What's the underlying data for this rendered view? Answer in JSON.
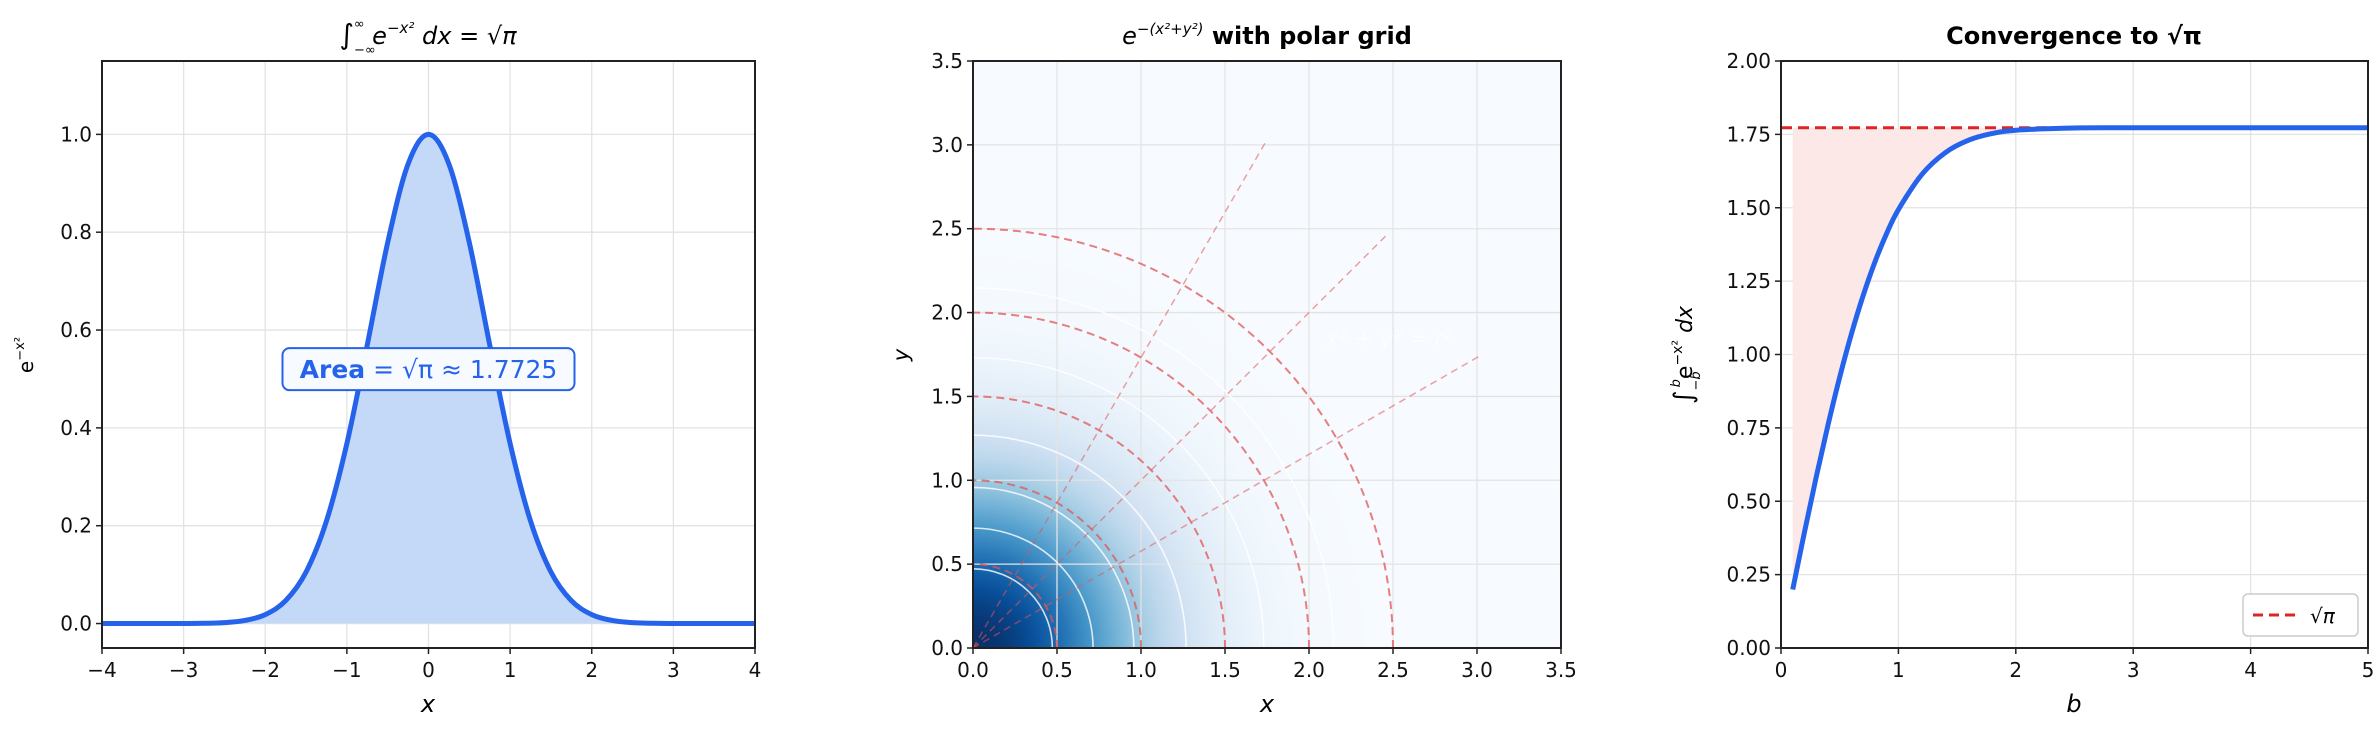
{
  "chart_data": [
    {
      "type": "area",
      "title_parts": [
        "∫",
        "−∞",
        "∞",
        " e",
        "−x²",
        " dx = √π"
      ],
      "xlabel": "x",
      "ylabel_parts": [
        "e",
        "−x²"
      ],
      "xlim": [
        -4,
        4
      ],
      "ylim": [
        -0.05,
        1.15
      ],
      "grid": true,
      "xticks": [
        -4,
        -3,
        -2,
        -1,
        0,
        1,
        2,
        3,
        4
      ],
      "xtick_labels": [
        "−4",
        "−3",
        "−2",
        "−1",
        "0",
        "1",
        "2",
        "3",
        "4"
      ],
      "yticks": [
        0,
        0.2,
        0.4,
        0.6,
        0.8,
        1.0
      ],
      "ytick_labels": [
        "0.0",
        "0.2",
        "0.4",
        "0.6",
        "0.8",
        "1.0"
      ],
      "series": [
        {
          "x": [
            -4,
            -3.75,
            -3.5,
            -3.25,
            -3,
            -2.75,
            -2.5,
            -2.25,
            -2,
            -1.75,
            -1.5,
            -1.25,
            -1,
            -0.75,
            -0.5,
            -0.25,
            0,
            0.25,
            0.5,
            0.75,
            1,
            1.25,
            1.5,
            1.75,
            2,
            2.25,
            2.5,
            2.75,
            3,
            3.25,
            3.5,
            3.75,
            4
          ],
          "y": [
            0,
            0,
            0,
            0,
            0.0001,
            0.0005,
            0.0019,
            0.0063,
            0.0183,
            0.0468,
            0.1054,
            0.2096,
            0.3679,
            0.5698,
            0.7788,
            0.9394,
            1,
            0.9394,
            0.7788,
            0.5698,
            0.3679,
            0.2096,
            0.1054,
            0.0468,
            0.0183,
            0.0063,
            0.0019,
            0.0005,
            0.0001,
            0,
            0,
            0,
            0
          ]
        }
      ],
      "annotation": {
        "bold": "Area",
        "text": " = √π ≈ 1.7725",
        "x": 0,
        "y": 0.52
      },
      "colors": {
        "line": "#2563eb",
        "fill": "#c4d9f8"
      }
    },
    {
      "type": "heatmap",
      "title_parts": [
        "e",
        "−(x²+y²)",
        " with polar grid"
      ],
      "xlabel": "x",
      "ylabel": "y",
      "xlim": [
        0,
        3.5
      ],
      "ylim": [
        0,
        3.5
      ],
      "grid": true,
      "colormap": "Blues",
      "function": "exp(-(x^2+y^2))",
      "xticks": [
        0,
        0.5,
        1,
        1.5,
        2,
        2.5,
        3,
        3.5
      ],
      "xtick_labels": [
        "0.0",
        "0.5",
        "1.0",
        "1.5",
        "2.0",
        "2.5",
        "3.0",
        "3.5"
      ],
      "yticks": [
        0,
        0.5,
        1,
        1.5,
        2,
        2.5,
        3,
        3.5
      ],
      "ytick_labels": [
        "0.0",
        "0.5",
        "1.0",
        "1.5",
        "2.0",
        "2.5",
        "3.0",
        "3.5"
      ],
      "polar_circles_r": [
        0.5,
        1,
        1.5,
        2,
        2.5
      ],
      "polar_rays_deg": [
        0,
        30,
        45,
        60,
        90
      ],
      "ray_length": 3.5,
      "contour_levels": [
        0.8,
        0.6,
        0.4,
        0.2,
        0.05,
        0.01
      ],
      "annotation": {
        "text": "x² + y² = r²",
        "x": 2.1,
        "y": 1.8
      },
      "colors": {
        "polar": "#e05555",
        "contour": "#ffffff"
      }
    },
    {
      "type": "line",
      "title": "Convergence to √π",
      "xlabel": "b",
      "ylabel_parts": [
        "∫",
        "−b",
        "b",
        "e",
        "−x²",
        " dx"
      ],
      "xlim": [
        0,
        5
      ],
      "ylim": [
        0,
        2
      ],
      "grid": true,
      "xticks": [
        0,
        1,
        2,
        3,
        4,
        5
      ],
      "xtick_labels": [
        "0",
        "1",
        "2",
        "3",
        "4",
        "5"
      ],
      "yticks": [
        0,
        0.25,
        0.5,
        0.75,
        1,
        1.25,
        1.5,
        1.75,
        2
      ],
      "ytick_labels": [
        "0.00",
        "0.25",
        "0.50",
        "0.75",
        "1.00",
        "1.25",
        "1.50",
        "1.75",
        "2.00"
      ],
      "series": [
        {
          "x": [
            0.1,
            0.2,
            0.3,
            0.4,
            0.5,
            0.6,
            0.7,
            0.8,
            0.9,
            1.0,
            1.2,
            1.4,
            1.6,
            1.8,
            2.0,
            2.5,
            3,
            4,
            5
          ],
          "y": [
            0.1994,
            0.3948,
            0.5825,
            0.7593,
            0.9226,
            1.0703,
            1.2013,
            1.3153,
            1.4125,
            1.4936,
            1.6135,
            1.6879,
            1.7305,
            1.7531,
            1.7642,
            1.7717,
            1.7724,
            1.7725,
            1.7725
          ]
        },
        {
          "name": "√π",
          "hline": 1.7725,
          "style": "dashed"
        }
      ],
      "legend": {
        "position": "lower right",
        "entries": [
          "√π"
        ]
      },
      "colors": {
        "line": "#2563eb",
        "reference": "#dc2626",
        "fill": "#fde8e8"
      }
    }
  ]
}
